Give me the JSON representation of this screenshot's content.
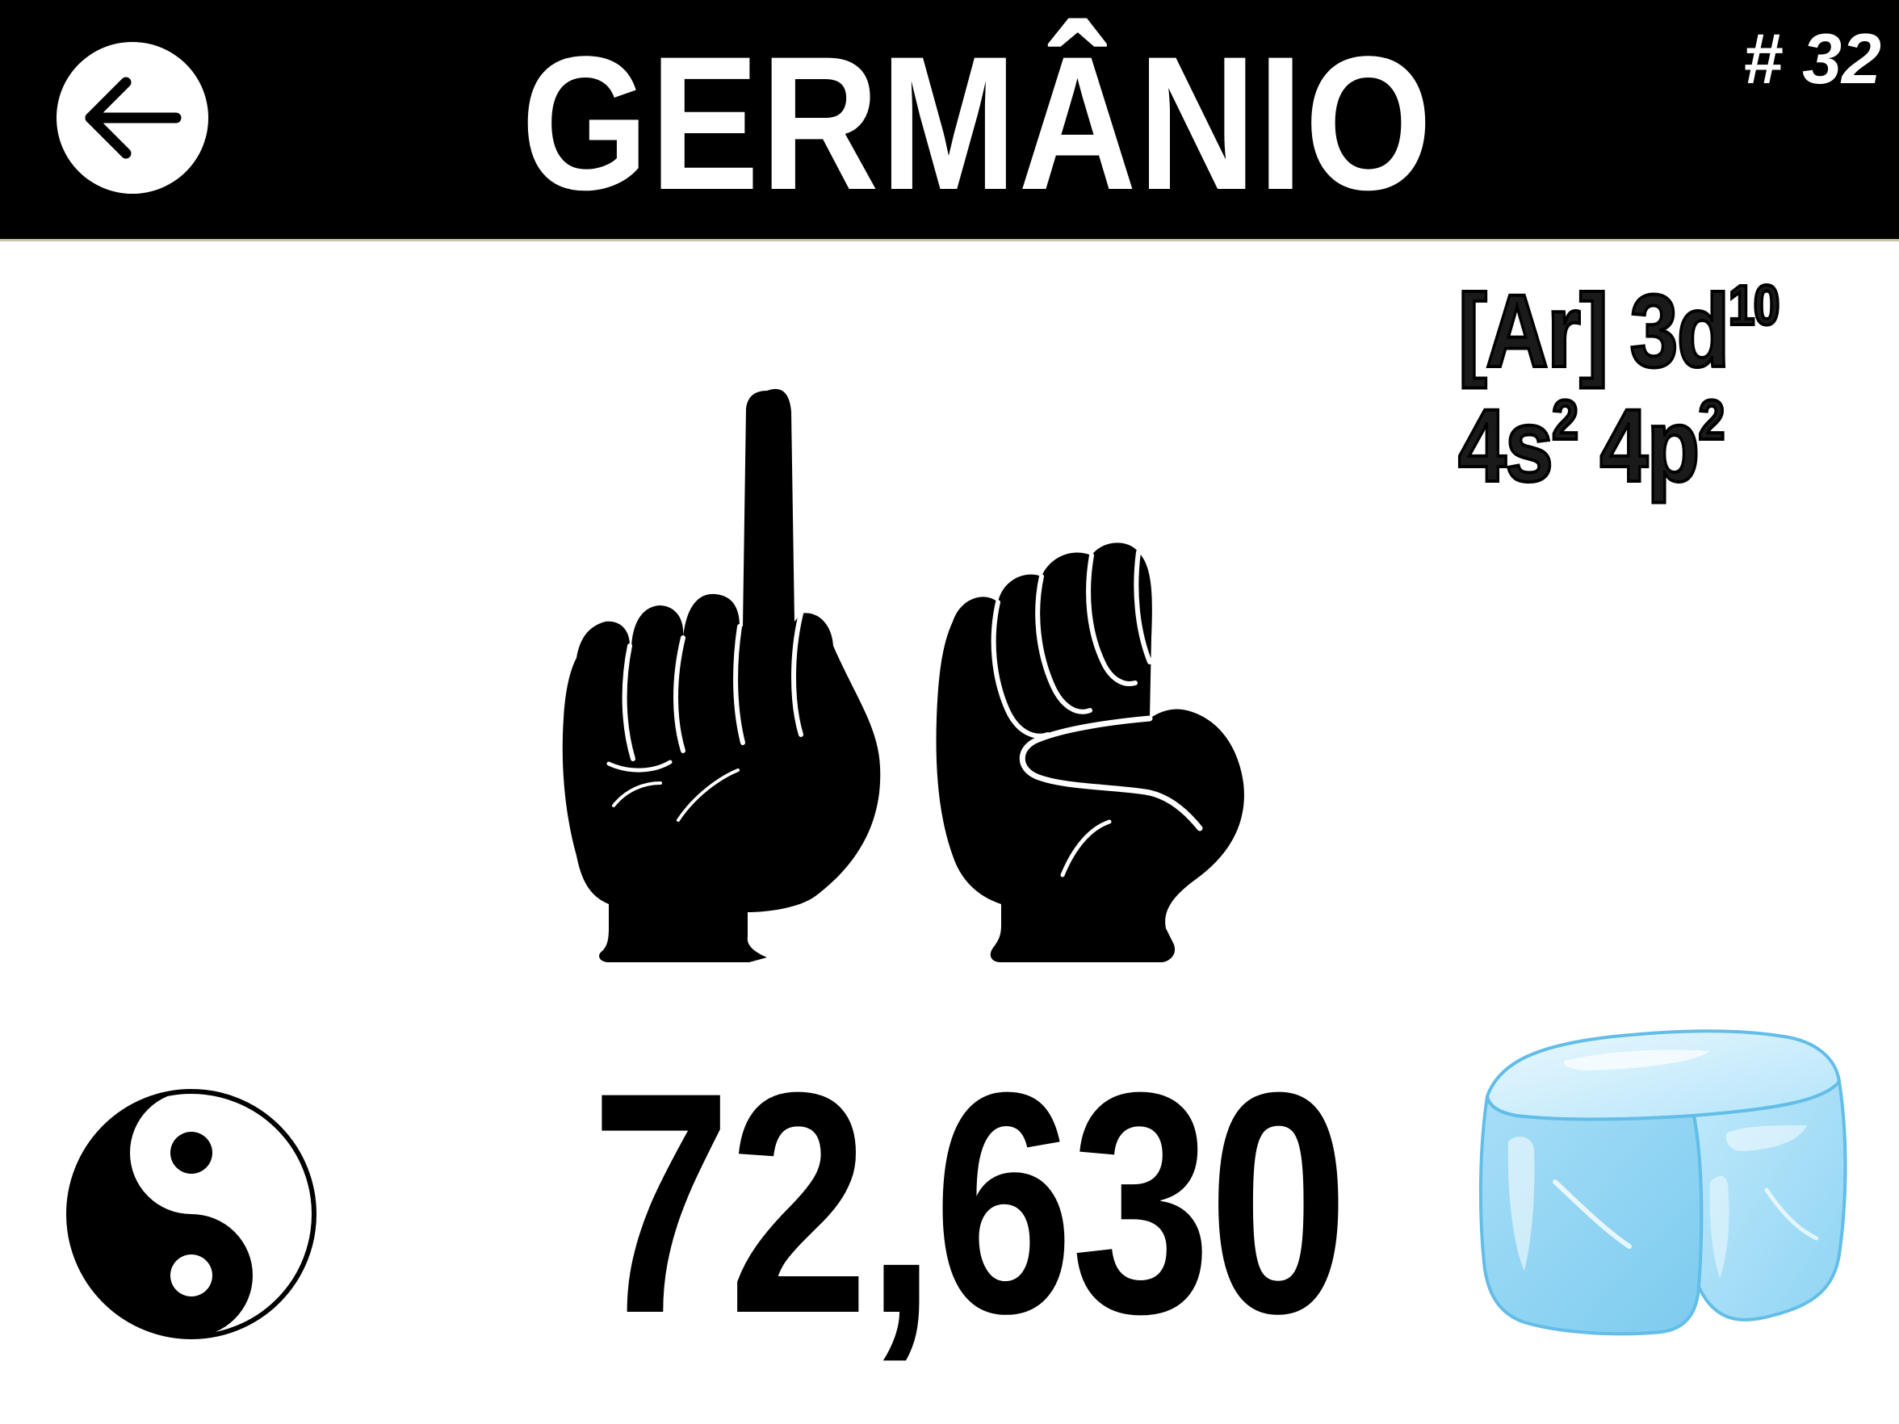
{
  "header": {
    "back_button_label": "",
    "title": "GERMÂNIO",
    "atomic_number": "# 32"
  },
  "electron_configuration": {
    "line1": {
      "text": "[Ar] 3d",
      "superscript": "10"
    },
    "line2": {
      "part1_base": "4s",
      "part1_superscript": "2",
      "part2_base": "4p",
      "part2_superscript": "2"
    }
  },
  "atomic_mass": "72,630",
  "icons": {
    "back": "arrow-left-icon",
    "hands": "sign-language-hands-icon",
    "classification": "yin-yang-icon",
    "state": "ice-cube-icon"
  },
  "colors": {
    "header_background": "#000000",
    "header_text": "#ffffff",
    "page_background": "#ffffff",
    "ice_light": "#cdeefd",
    "ice_mid": "#9fdcf6",
    "ice_dark": "#5ab7e6"
  }
}
